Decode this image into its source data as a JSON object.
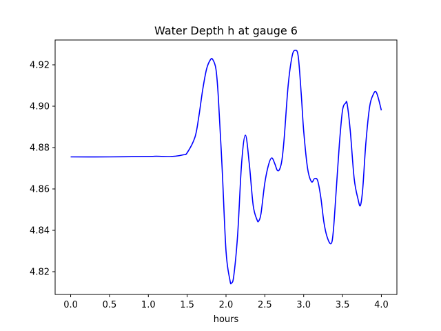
{
  "chart_data": {
    "type": "line",
    "title": "Water Depth h at gauge 6",
    "xlabel": "hours",
    "ylabel": "",
    "xlim": [
      -0.2,
      4.2
    ],
    "ylim": [
      4.809,
      4.932
    ],
    "xticks": [
      "0.0",
      "0.5",
      "1.0",
      "1.5",
      "2.0",
      "2.5",
      "3.0",
      "3.5",
      "4.0"
    ],
    "yticks": [
      "4.82",
      "4.84",
      "4.86",
      "4.88",
      "4.90",
      "4.92"
    ],
    "grid": false,
    "series": [
      {
        "color": "#0000ff",
        "x": [
          0.0,
          0.5,
          1.0,
          1.1,
          1.3,
          1.45,
          1.5,
          1.6,
          1.65,
          1.7,
          1.75,
          1.8,
          1.83,
          1.87,
          1.9,
          1.95,
          2.0,
          2.05,
          2.07,
          2.1,
          2.15,
          2.2,
          2.25,
          2.3,
          2.35,
          2.4,
          2.42,
          2.45,
          2.5,
          2.55,
          2.59,
          2.63,
          2.66,
          2.69,
          2.72,
          2.75,
          2.8,
          2.85,
          2.89,
          2.93,
          2.97,
          3.0,
          3.05,
          3.1,
          3.14,
          3.18,
          3.22,
          3.26,
          3.3,
          3.35,
          3.38,
          3.42,
          3.46,
          3.5,
          3.54,
          3.56,
          3.6,
          3.65,
          3.7,
          3.73,
          3.76,
          3.8,
          3.85,
          3.9,
          3.93,
          3.96,
          4.0
        ],
        "y": [
          4.8755,
          4.8755,
          4.8757,
          4.8758,
          4.8757,
          4.8765,
          4.8775,
          4.885,
          4.895,
          4.908,
          4.918,
          4.9225,
          4.9225,
          4.918,
          4.905,
          4.87,
          4.83,
          4.816,
          4.8145,
          4.818,
          4.838,
          4.872,
          4.886,
          4.872,
          4.852,
          4.845,
          4.8445,
          4.848,
          4.863,
          4.872,
          4.875,
          4.872,
          4.869,
          4.8695,
          4.874,
          4.885,
          4.91,
          4.924,
          4.927,
          4.924,
          4.905,
          4.888,
          4.87,
          4.8635,
          4.865,
          4.864,
          4.856,
          4.844,
          4.837,
          4.8335,
          4.839,
          4.86,
          4.882,
          4.898,
          4.9015,
          4.901,
          4.888,
          4.865,
          4.855,
          4.852,
          4.86,
          4.882,
          4.9,
          4.906,
          4.907,
          4.904,
          4.898
        ]
      }
    ]
  }
}
